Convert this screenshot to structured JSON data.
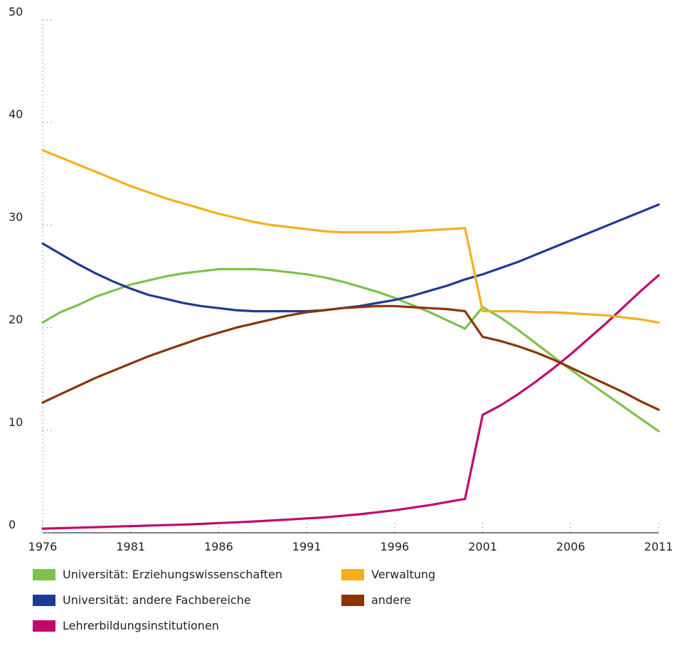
{
  "chart_data": {
    "type": "line",
    "title": "",
    "xlabel": "",
    "ylabel": "",
    "xlim": [
      1976,
      2011
    ],
    "ylim": [
      0,
      50
    ],
    "x_ticks": [
      1976,
      1981,
      1986,
      1991,
      1996,
      2001,
      2006,
      2011
    ],
    "x_tick_labels": [
      "1976",
      "1981",
      "1986",
      "1991",
      "1996",
      "2001",
      "2006",
      "2011"
    ],
    "y_ticks": [
      0,
      10,
      20,
      30,
      40,
      50
    ],
    "y_tick_labels": [
      "0",
      "10",
      "20",
      "30",
      "40",
      "50"
    ],
    "grid": "dotted vertical tick marks",
    "legend_position": "bottom",
    "series": [
      {
        "name": "Universität: Erziehungswissenschaften",
        "color": "#7dc24b",
        "x": [
          1976,
          1977,
          1978,
          1979,
          1980,
          1981,
          1982,
          1983,
          1984,
          1985,
          1986,
          1987,
          1988,
          1989,
          1990,
          1991,
          1992,
          1993,
          1994,
          1995,
          1996,
          1997,
          1998,
          1999,
          2000,
          2001,
          2002,
          2003,
          2004,
          2005,
          2006,
          2007,
          2008,
          2009,
          2010,
          2011
        ],
        "y": [
          20.5,
          21.5,
          22.2,
          23.0,
          23.6,
          24.2,
          24.6,
          25.0,
          25.3,
          25.5,
          25.7,
          25.7,
          25.7,
          25.6,
          25.4,
          25.2,
          24.9,
          24.5,
          24.0,
          23.5,
          22.9,
          22.2,
          21.5,
          20.7,
          19.9,
          22.0,
          21.0,
          19.8,
          18.5,
          17.2,
          15.9,
          14.7,
          13.5,
          12.3,
          11.1,
          9.9
        ]
      },
      {
        "name": "Universität: andere Fachbereiche",
        "color": "#1f3a93",
        "x": [
          1976,
          1977,
          1978,
          1979,
          1980,
          1981,
          1982,
          1983,
          1984,
          1985,
          1986,
          1987,
          1988,
          1989,
          1990,
          1991,
          1992,
          1993,
          1994,
          1995,
          1996,
          1997,
          1998,
          1999,
          2000,
          2001,
          2002,
          2003,
          2004,
          2005,
          2006,
          2007,
          2008,
          2009,
          2010,
          2011
        ],
        "y": [
          28.2,
          27.2,
          26.2,
          25.3,
          24.5,
          23.8,
          23.2,
          22.8,
          22.4,
          22.1,
          21.9,
          21.7,
          21.6,
          21.6,
          21.6,
          21.6,
          21.7,
          21.9,
          22.1,
          22.4,
          22.7,
          23.1,
          23.6,
          24.1,
          24.7,
          25.2,
          25.8,
          26.4,
          27.1,
          27.8,
          28.5,
          29.2,
          29.9,
          30.6,
          31.3,
          32.0
        ]
      },
      {
        "name": "Lehrerbildungsinstitutionen",
        "color": "#c0086f",
        "x": [
          1976,
          1977,
          1978,
          1979,
          1980,
          1981,
          1982,
          1983,
          1984,
          1985,
          1986,
          1987,
          1988,
          1989,
          1990,
          1991,
          1992,
          1993,
          1994,
          1995,
          1996,
          1997,
          1998,
          1999,
          2000,
          2001,
          2002,
          2003,
          2004,
          2005,
          2006,
          2007,
          2008,
          2009,
          2010,
          2011
        ],
        "y": [
          0.4,
          0.45,
          0.5,
          0.55,
          0.6,
          0.65,
          0.7,
          0.75,
          0.8,
          0.87,
          0.95,
          1.02,
          1.1,
          1.2,
          1.3,
          1.4,
          1.5,
          1.65,
          1.8,
          2.0,
          2.2,
          2.45,
          2.7,
          3.0,
          3.3,
          11.5,
          12.4,
          13.5,
          14.7,
          16.0,
          17.4,
          18.9,
          20.4,
          22.0,
          23.6,
          25.1
        ]
      },
      {
        "name": "Verwaltung",
        "color": "#f7ae1d",
        "x": [
          1976,
          1977,
          1978,
          1979,
          1980,
          1981,
          1982,
          1983,
          1984,
          1985,
          1986,
          1987,
          1988,
          1989,
          1990,
          1991,
          1992,
          1993,
          1994,
          1995,
          1996,
          1997,
          1998,
          1999,
          2000,
          2001,
          2002,
          2003,
          2004,
          2005,
          2006,
          2007,
          2008,
          2009,
          2010,
          2011
        ],
        "y": [
          37.3,
          36.6,
          35.9,
          35.2,
          34.5,
          33.8,
          33.2,
          32.6,
          32.1,
          31.6,
          31.1,
          30.7,
          30.3,
          30.0,
          29.8,
          29.6,
          29.4,
          29.3,
          29.3,
          29.3,
          29.3,
          29.4,
          29.5,
          29.6,
          29.7,
          21.6,
          21.6,
          21.6,
          21.5,
          21.5,
          21.4,
          21.3,
          21.2,
          21.0,
          20.8,
          20.5
        ]
      },
      {
        "name": "andere",
        "color": "#8b3406",
        "x": [
          1976,
          1977,
          1978,
          1979,
          1980,
          1981,
          1982,
          1983,
          1984,
          1985,
          1986,
          1987,
          1988,
          1989,
          1990,
          1991,
          1992,
          1993,
          1994,
          1995,
          1996,
          1997,
          1998,
          1999,
          2000,
          2001,
          2002,
          2003,
          2004,
          2005,
          2006,
          2007,
          2008,
          2009,
          2010,
          2011
        ],
        "y": [
          12.7,
          13.5,
          14.3,
          15.1,
          15.8,
          16.5,
          17.2,
          17.8,
          18.4,
          19.0,
          19.5,
          20.0,
          20.4,
          20.8,
          21.2,
          21.5,
          21.7,
          21.9,
          22.0,
          22.1,
          22.1,
          22.0,
          21.9,
          21.8,
          21.6,
          19.1,
          18.7,
          18.2,
          17.6,
          16.9,
          16.1,
          15.3,
          14.5,
          13.7,
          12.8,
          12.0
        ]
      }
    ]
  },
  "legend": {
    "items": [
      {
        "label": "Universität: Erziehungswissenschaften",
        "color": "#7dc24b"
      },
      {
        "label": "Verwaltung",
        "color": "#f7ae1d"
      },
      {
        "label": "Universität: andere Fachbereiche",
        "color": "#1f3a93"
      },
      {
        "label": "andere",
        "color": "#8b3406"
      },
      {
        "label": "Lehrerbildungsinstitutionen",
        "color": "#c0086f"
      }
    ]
  }
}
